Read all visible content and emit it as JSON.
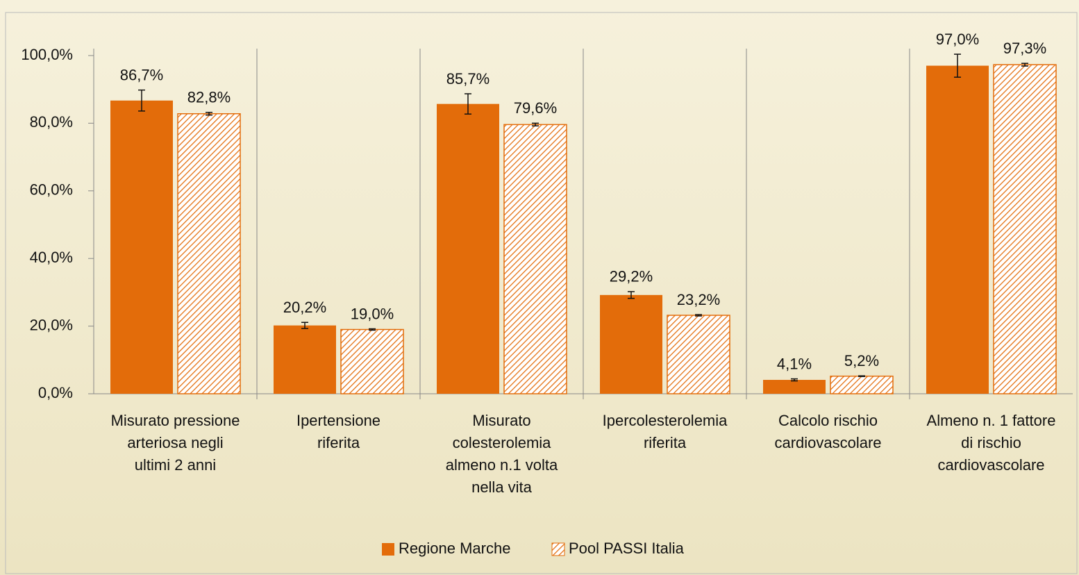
{
  "chart_data": {
    "type": "bar",
    "categories": [
      [
        "Misurato pressione",
        "arteriosa negli",
        "ultimi 2 anni"
      ],
      [
        "Ipertensione",
        "riferita"
      ],
      [
        "Misurato",
        "colesterolemia",
        "almeno n.1  volta",
        "nella vita"
      ],
      [
        "Ipercolesterolemia",
        "riferita"
      ],
      [
        "Calcolo rischio",
        "cardiovascolare"
      ],
      [
        "Almeno n. 1 fattore",
        "di rischio",
        "cardiovascolare"
      ]
    ],
    "series": [
      {
        "name": "Regione Marche",
        "color": "#e36c0a",
        "pattern": "solid",
        "values": [
          86.7,
          20.2,
          85.7,
          29.2,
          4.1,
          97.0
        ],
        "value_labels": [
          "86,7%",
          "20,2%",
          "85,7%",
          "29,2%",
          "4,1%",
          "97,0%"
        ],
        "errors": [
          3.1,
          0.9,
          3.0,
          1.0,
          0.3,
          3.4
        ]
      },
      {
        "name": "Pool PASSI Italia",
        "color": "#e36c0a",
        "pattern": "hatch",
        "values": [
          82.8,
          19.0,
          79.6,
          23.2,
          5.2,
          97.3
        ],
        "value_labels": [
          "82,8%",
          "19,0%",
          "79,6%",
          "23,2%",
          "5,2%",
          "97,3%"
        ],
        "errors": [
          0.4,
          0.2,
          0.4,
          0.2,
          0.1,
          0.4
        ]
      }
    ],
    "ylim": [
      0,
      100
    ],
    "yticks": [
      {
        "value": 0,
        "label": "0,0%"
      },
      {
        "value": 20,
        "label": "20,0%"
      },
      {
        "value": 40,
        "label": "40,0%"
      },
      {
        "value": 60,
        "label": "60,0%"
      },
      {
        "value": 80,
        "label": "80,0%"
      },
      {
        "value": 100,
        "label": "100,0%"
      }
    ],
    "legend": "bottom"
  }
}
